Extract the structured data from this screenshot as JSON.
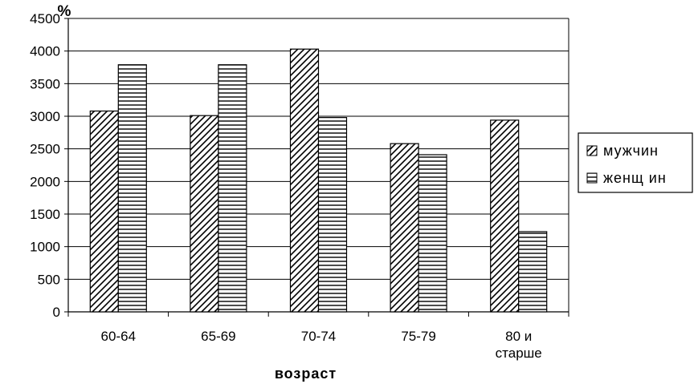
{
  "chart_data": {
    "type": "bar",
    "unit_label": "%",
    "xlabel": "возраст",
    "ylabel": "",
    "ylim": [
      0,
      4500
    ],
    "yticks": [
      0,
      500,
      1000,
      1500,
      2000,
      2500,
      3000,
      3500,
      4000,
      4500
    ],
    "categories": [
      [
        "60-64"
      ],
      [
        "65-69"
      ],
      [
        "70-74"
      ],
      [
        "75-79"
      ],
      [
        "80 и",
        "старше"
      ]
    ],
    "series": [
      {
        "name": "мужчин",
        "pattern": "diagonal",
        "values": [
          3080,
          3010,
          4030,
          2580,
          2940
        ]
      },
      {
        "name": "женщ ин",
        "pattern": "horizontal",
        "values": [
          3790,
          3790,
          2980,
          2410,
          1230
        ]
      }
    ],
    "grid": "horizontal",
    "legend_position": "right"
  }
}
